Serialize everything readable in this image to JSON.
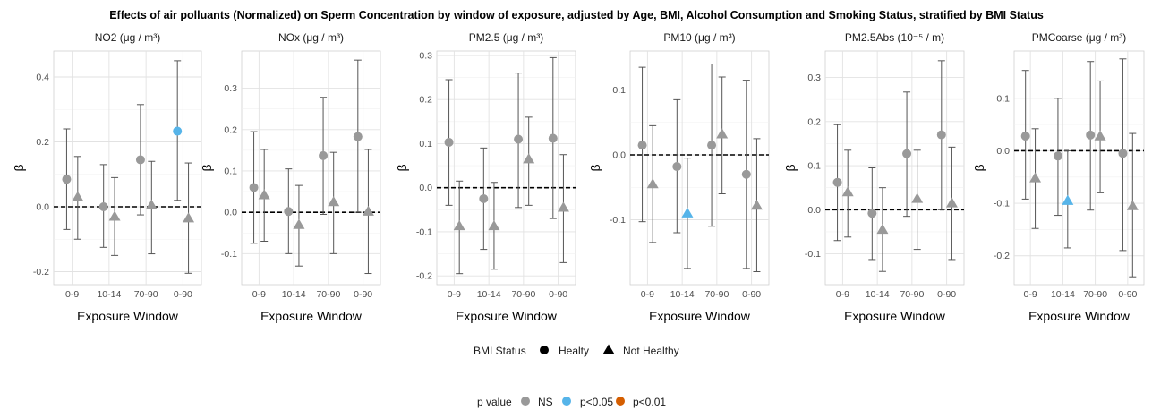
{
  "title": "Effects of air polluants (Normalized) on Sperm Concentration by window of exposure, adjusted by Age, BMI, Alcohol Consumption and Smoking Status, stratified by BMI Status",
  "colors": {
    "NS": "#999999",
    "p<0.05": "#56B4E9",
    "p<0.01": "#D55E00"
  },
  "legend": {
    "shape_title": "BMI Status",
    "shape_items": [
      {
        "label": "Healty",
        "shape": "circle"
      },
      {
        "label": "Not Healthy",
        "shape": "triangle"
      }
    ],
    "color_title": "p value",
    "color_items": [
      {
        "label": "NS",
        "color": "#999999"
      },
      {
        "label": "p<0.05",
        "color": "#56B4E9"
      },
      {
        "label": "p<0.01",
        "color": "#D55E00"
      }
    ]
  },
  "chart_data": [
    {
      "type": "scatter",
      "title": "NO2 (μg / m³)",
      "xlabel": "Exposure Window",
      "ylabel": "β",
      "categories": [
        "0-9",
        "10-14",
        "70-90",
        "0-90"
      ],
      "ylim": [
        -0.24,
        0.48
      ],
      "yticks": [
        -0.2,
        0.0,
        0.2,
        0.4
      ],
      "grid": true,
      "reference_line": 0,
      "series": [
        {
          "name": "Healty",
          "values": [
            0.085,
            0.0,
            0.145,
            0.233
          ],
          "lower": [
            -0.07,
            -0.125,
            -0.025,
            0.02
          ],
          "upper": [
            0.24,
            0.13,
            0.315,
            0.45
          ],
          "p_value": [
            "NS",
            "NS",
            "NS",
            "p<0.05"
          ]
        },
        {
          "name": "Not Healthy",
          "values": [
            0.03,
            -0.03,
            0.005,
            -0.035
          ],
          "lower": [
            -0.1,
            -0.15,
            -0.145,
            -0.205
          ],
          "upper": [
            0.155,
            0.09,
            0.14,
            0.135
          ],
          "p_value": [
            "NS",
            "NS",
            "NS",
            "NS"
          ]
        }
      ]
    },
    {
      "type": "scatter",
      "title": "NOx (μg / m³)",
      "xlabel": "Exposure Window",
      "ylabel": "β",
      "categories": [
        "0-9",
        "10-14",
        "70-90",
        "0-90"
      ],
      "ylim": [
        -0.175,
        0.39
      ],
      "yticks": [
        -0.1,
        0.0,
        0.1,
        0.2,
        0.3
      ],
      "grid": true,
      "reference_line": 0,
      "series": [
        {
          "name": "Healty",
          "values": [
            0.06,
            0.002,
            0.137,
            0.183
          ],
          "lower": [
            -0.075,
            -0.1,
            -0.005,
            0.0
          ],
          "upper": [
            0.195,
            0.105,
            0.278,
            0.368
          ],
          "p_value": [
            "NS",
            "NS",
            "NS",
            "NS"
          ]
        },
        {
          "name": "Not Healthy",
          "values": [
            0.042,
            -0.03,
            0.025,
            0.002
          ],
          "lower": [
            -0.07,
            -0.13,
            -0.1,
            -0.148
          ],
          "upper": [
            0.152,
            0.065,
            0.145,
            0.152
          ],
          "p_value": [
            "NS",
            "NS",
            "NS",
            "NS"
          ]
        }
      ]
    },
    {
      "type": "scatter",
      "title": "PM2.5 (μg / m³)",
      "xlabel": "Exposure Window",
      "ylabel": "β",
      "categories": [
        "0-9",
        "10-14",
        "70-90",
        "0-90"
      ],
      "ylim": [
        -0.22,
        0.31
      ],
      "yticks": [
        -0.2,
        -0.1,
        0.0,
        0.1,
        0.2,
        0.3
      ],
      "grid": true,
      "reference_line": 0,
      "series": [
        {
          "name": "Healty",
          "values": [
            0.103,
            -0.025,
            0.11,
            0.112
          ],
          "lower": [
            -0.04,
            -0.14,
            -0.045,
            -0.07
          ],
          "upper": [
            0.245,
            0.09,
            0.26,
            0.295
          ],
          "p_value": [
            "NS",
            "NS",
            "NS",
            "NS"
          ]
        },
        {
          "name": "Not Healthy",
          "values": [
            -0.087,
            -0.087,
            0.065,
            -0.045
          ],
          "lower": [
            -0.195,
            -0.185,
            -0.04,
            -0.17
          ],
          "upper": [
            0.015,
            0.012,
            0.16,
            0.075
          ],
          "p_value": [
            "NS",
            "NS",
            "NS",
            "NS"
          ]
        }
      ]
    },
    {
      "type": "scatter",
      "title": "PM10 (μg / m³)",
      "xlabel": "Exposure Window",
      "ylabel": "β",
      "categories": [
        "0-9",
        "10-14",
        "70-90",
        "0-90"
      ],
      "ylim": [
        -0.2,
        0.16
      ],
      "yticks": [
        -0.1,
        0.0,
        0.1
      ],
      "grid": true,
      "reference_line": 0,
      "series": [
        {
          "name": "Healty",
          "values": [
            0.015,
            -0.018,
            0.015,
            -0.03
          ],
          "lower": [
            -0.103,
            -0.12,
            -0.11,
            -0.175
          ],
          "upper": [
            0.135,
            0.085,
            0.14,
            0.115
          ],
          "p_value": [
            "NS",
            "NS",
            "NS",
            "NS"
          ]
        },
        {
          "name": "Not Healthy",
          "values": [
            -0.045,
            -0.09,
            0.032,
            -0.078
          ],
          "lower": [
            -0.135,
            -0.175,
            -0.06,
            -0.18
          ],
          "upper": [
            0.045,
            -0.005,
            0.12,
            0.025
          ],
          "p_value": [
            "NS",
            "p<0.05",
            "NS",
            "NS"
          ]
        }
      ]
    },
    {
      "type": "scatter",
      "title": "PM2.5Abs (10⁻⁵ / m)",
      "xlabel": "Exposure Window",
      "ylabel": "β",
      "categories": [
        "0-9",
        "10-14",
        "70-90",
        "0-90"
      ],
      "ylim": [
        -0.17,
        0.36
      ],
      "yticks": [
        -0.1,
        0.0,
        0.1,
        0.2,
        0.3
      ],
      "grid": true,
      "reference_line": 0,
      "series": [
        {
          "name": "Healty",
          "values": [
            0.062,
            -0.008,
            0.127,
            0.17
          ],
          "lower": [
            -0.07,
            -0.113,
            -0.015,
            0.0
          ],
          "upper": [
            0.193,
            0.095,
            0.267,
            0.338
          ],
          "p_value": [
            "NS",
            "NS",
            "NS",
            "NS"
          ]
        },
        {
          "name": "Not Healthy",
          "values": [
            0.04,
            -0.045,
            0.025,
            0.015
          ],
          "lower": [
            -0.062,
            -0.14,
            -0.09,
            -0.113
          ],
          "upper": [
            0.135,
            0.05,
            0.135,
            0.142
          ],
          "p_value": [
            "NS",
            "NS",
            "NS",
            "NS"
          ]
        }
      ]
    },
    {
      "type": "scatter",
      "title": "PMCoarse (μg / m³)",
      "xlabel": "Exposure Window",
      "ylabel": "β",
      "categories": [
        "0-9",
        "10-14",
        "70-90",
        "0-90"
      ],
      "ylim": [
        -0.255,
        0.19
      ],
      "yticks": [
        -0.2,
        -0.1,
        0.0,
        0.1
      ],
      "grid": true,
      "reference_line": 0,
      "series": [
        {
          "name": "Healty",
          "values": [
            0.028,
            -0.01,
            0.03,
            -0.005
          ],
          "lower": [
            -0.092,
            -0.123,
            -0.113,
            -0.19
          ],
          "upper": [
            0.153,
            0.1,
            0.17,
            0.175
          ],
          "p_value": [
            "NS",
            "NS",
            "NS",
            "NS"
          ]
        },
        {
          "name": "Not Healthy",
          "values": [
            -0.052,
            -0.095,
            0.028,
            -0.105
          ],
          "lower": [
            -0.148,
            -0.185,
            -0.08,
            -0.24
          ],
          "upper": [
            0.042,
            0.0,
            0.133,
            0.033
          ],
          "p_value": [
            "NS",
            "p<0.05",
            "NS",
            "NS"
          ]
        }
      ]
    }
  ]
}
